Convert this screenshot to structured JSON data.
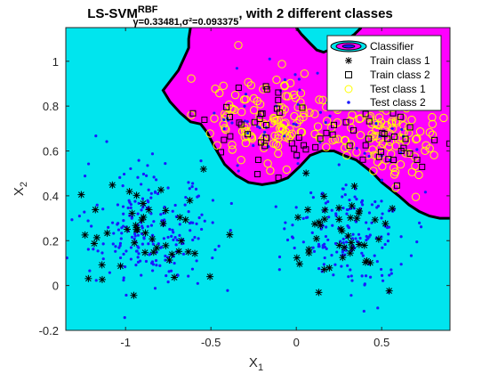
{
  "chart_data": {
    "type": "scatter",
    "title_main": "LS-SVM",
    "title_sup": "RBF",
    "title_sub": "γ=0.33481,σ²=0.093375",
    "title_tail": ", with 2 different classes",
    "xlabel_base": "X",
    "xlabel_sub": "1",
    "ylabel_base": "X",
    "ylabel_sub": "2",
    "xlim": [
      -1.35,
      0.9
    ],
    "ylim": [
      -0.2,
      1.15
    ],
    "xticks": [
      -1,
      -0.5,
      0,
      0.5
    ],
    "xtick_labels": [
      "-1",
      "-0.5",
      "0",
      "0.5"
    ],
    "yticks": [
      -0.2,
      0,
      0.2,
      0.4,
      0.6,
      0.8,
      1
    ],
    "ytick_labels": [
      "-0.2",
      "0",
      "0.2",
      "0.4",
      "0.6",
      "0.8",
      "1"
    ],
    "legend_position": "top-right",
    "legend": [
      {
        "label": "Classifier",
        "marker": "classifier"
      },
      {
        "label": "Train class 1",
        "marker": "star"
      },
      {
        "label": "Train class 2",
        "marker": "square"
      },
      {
        "label": "Test class 1",
        "marker": "circle"
      },
      {
        "label": "Test class 2",
        "marker": "dot"
      }
    ],
    "colors": {
      "class1_region": "#00e5ee",
      "class2_region": "#ff00ff",
      "boundary": "#000000",
      "train1": "#000000",
      "train2": "#000000",
      "test1": "#ffff00",
      "test2": "#1a1aff",
      "grid": false
    },
    "decision_boundary": [
      [
        0.9,
        0.3
      ],
      [
        0.84,
        0.3
      ],
      [
        0.78,
        0.31
      ],
      [
        0.72,
        0.33
      ],
      [
        0.66,
        0.36
      ],
      [
        0.6,
        0.4
      ],
      [
        0.55,
        0.43
      ],
      [
        0.5,
        0.46
      ],
      [
        0.45,
        0.5
      ],
      [
        0.4,
        0.53
      ],
      [
        0.35,
        0.56
      ],
      [
        0.28,
        0.58
      ],
      [
        0.22,
        0.6
      ],
      [
        0.15,
        0.6
      ],
      [
        0.08,
        0.58
      ],
      [
        0.02,
        0.53
      ],
      [
        -0.05,
        0.48
      ],
      [
        -0.12,
        0.46
      ],
      [
        -0.2,
        0.45
      ],
      [
        -0.28,
        0.46
      ],
      [
        -0.35,
        0.49
      ],
      [
        -0.42,
        0.54
      ],
      [
        -0.48,
        0.62
      ],
      [
        -0.52,
        0.68
      ],
      [
        -0.56,
        0.72
      ],
      [
        -0.62,
        0.73
      ],
      [
        -0.68,
        0.77
      ],
      [
        -0.74,
        0.82
      ],
      [
        -0.78,
        0.87
      ],
      [
        -0.74,
        0.91
      ],
      [
        -0.69,
        0.96
      ],
      [
        -0.66,
        1.01
      ],
      [
        -0.63,
        1.06
      ],
      [
        -0.63,
        1.1
      ],
      [
        -0.62,
        1.15
      ]
    ],
    "top_boundary": [
      [
        -0.62,
        1.15
      ],
      [
        0.0,
        1.15
      ],
      [
        0.03,
        1.12
      ],
      [
        0.08,
        1.08
      ],
      [
        0.12,
        1.05
      ],
      [
        0.16,
        1.04
      ],
      [
        0.22,
        1.06
      ],
      [
        0.28,
        1.09
      ],
      [
        0.34,
        1.12
      ],
      [
        0.38,
        1.15
      ],
      [
        0.9,
        1.15
      ]
    ],
    "regions": {
      "seed": 12345,
      "class1": {
        "train_count": 90,
        "test_count": 380
      },
      "class2": {
        "train_count": 70,
        "test_count": 230
      }
    }
  }
}
